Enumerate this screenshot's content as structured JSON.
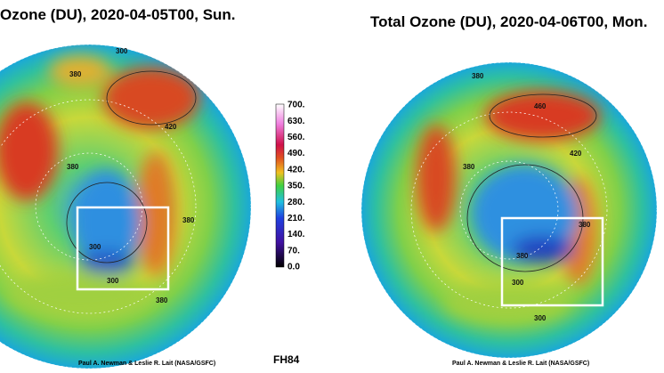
{
  "maps": [
    {
      "title": "Ozone (DU), 2020-04-05T00, Sun.",
      "credit": "Paul A. Newman & Leslie R. Lait (NASA/GSFC)",
      "contour_labels": [
        "380",
        "300",
        "380",
        "420",
        "380",
        "300",
        "380",
        "300"
      ]
    },
    {
      "title": "Total Ozone (DU), 2020-04-06T00, Mon.",
      "credit": "Paul A. Newman & Leslie R. Lait (NASA/GSFC)",
      "contour_labels": [
        "380",
        "460",
        "420",
        "380",
        "300",
        "380",
        "380",
        "300"
      ]
    }
  ],
  "colorbar": {
    "labels": [
      "700.",
      "630.",
      "560.",
      "490.",
      "420.",
      "350.",
      "280.",
      "210.",
      "140.",
      "70.",
      "0.0"
    ]
  },
  "forecast": "FH84"
}
